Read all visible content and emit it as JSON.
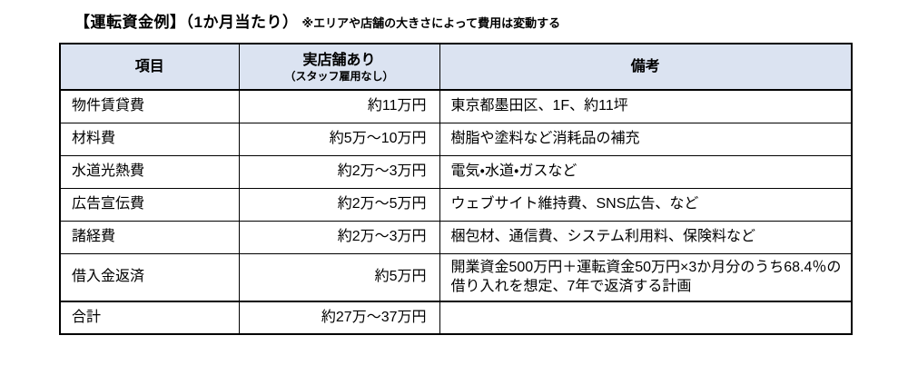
{
  "page": {
    "title_main": "【運転資金例】（1か月当たり）",
    "title_note": "※エリアや店舗の大きさによって費用は変動する"
  },
  "table": {
    "header": {
      "item": "項目",
      "store": "実店舗あり",
      "store_sub": "（スタッフ雇用なし）",
      "remarks": "備考"
    },
    "rows": [
      {
        "item": "物件賃貸費",
        "amount": "約11万円",
        "remarks": "東京都墨田区、1F、約11坪",
        "total": false
      },
      {
        "item": "材料費",
        "amount": "約5万〜10万円",
        "remarks": "樹脂や塗料など消耗品の補充",
        "total": false
      },
      {
        "item": "水道光熱費",
        "amount": "約2万〜3万円",
        "remarks": "電気・水道・ガスなど",
        "total": false
      },
      {
        "item": "広告宣伝費",
        "amount": "約2万〜5万円",
        "remarks": "ウェブサイト維持費、SNS広告、など",
        "total": false
      },
      {
        "item": "諸経費",
        "amount": "約2万〜3万円",
        "remarks": "梱包材、通信費、システム利用料、保険料など",
        "total": false
      },
      {
        "item": "借入金返済",
        "amount": "約5万円",
        "remarks": "開業資金500万円＋運転資金50万円×3か月分のうち68.4％の借り入れを想定、7年で返済する計画",
        "total": false
      },
      {
        "item": "合計",
        "amount": "約27万〜37万円",
        "remarks": "",
        "total": true
      }
    ],
    "colors": {
      "header_bg": "#dbe3f1",
      "border": "#000000"
    }
  }
}
